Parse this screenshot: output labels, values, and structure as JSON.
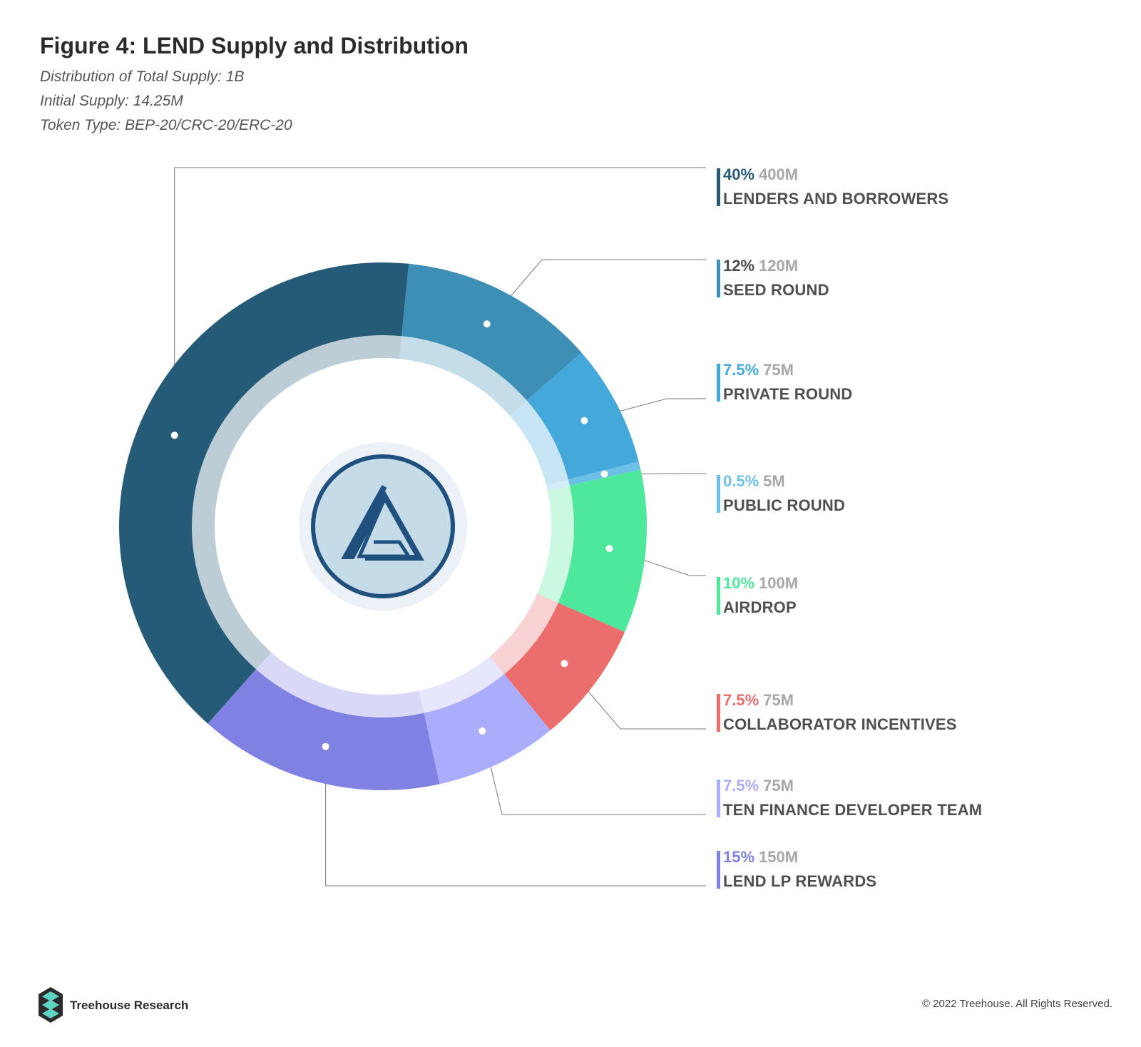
{
  "header": {
    "title": "Figure 4: LEND Supply and Distribution",
    "subtitles": [
      "Distribution of Total Supply: 1B",
      "Initial Supply: 14.25M",
      "Token Type: BEP-20/CRC-20/ERC-20"
    ]
  },
  "chart_data": {
    "type": "pie",
    "variant": "donut",
    "title": "Figure 4: LEND Supply and Distribution",
    "slices": [
      {
        "pct_label": "12%",
        "amount_label": "120M",
        "label": "SEED ROUND",
        "value": 12,
        "color": "#3d8fb5",
        "pct_color": "#4a4a4a"
      },
      {
        "pct_label": "7.5%",
        "amount_label": "75M",
        "label": "PRIVATE ROUND",
        "value": 7.5,
        "color": "#45a8da",
        "pct_color": "#45a8da"
      },
      {
        "pct_label": "0.5%",
        "amount_label": "5M",
        "label": "PUBLIC ROUND",
        "value": 0.5,
        "color": "#6cc0e8",
        "pct_color": "#6cc0e8"
      },
      {
        "pct_label": "10%",
        "amount_label": "100M",
        "label": "AIRDROP",
        "value": 10,
        "color": "#4ee89c",
        "pct_color": "#4ee89c"
      },
      {
        "pct_label": "7.5%",
        "amount_label": "75M",
        "label": "COLLABORATOR INCENTIVES",
        "value": 7.5,
        "color": "#ec6e6c",
        "pct_color": "#ec6e6c"
      },
      {
        "pct_label": "7.5%",
        "amount_label": "75M",
        "label": "TEN FINANCE DEVELOPER TEAM",
        "value": 7.5,
        "color": "#acacfc",
        "pct_color": "#acacfc"
      },
      {
        "pct_label": "15%",
        "amount_label": "150M",
        "label": "LEND LP REWARDS",
        "value": 15,
        "color": "#8181e4",
        "pct_color": "#8181e4"
      },
      {
        "pct_label": "40%",
        "amount_label": "400M",
        "label": "LENDERS AND BORROWERS",
        "value": 40,
        "color": "#265b77",
        "pct_color": "#265b77"
      }
    ],
    "legend_order": [
      7,
      0,
      1,
      2,
      3,
      4,
      5,
      6
    ]
  },
  "footer": {
    "brand": "Treehouse Research",
    "copyright": "© 2022 Treehouse. All Rights Reserved."
  }
}
